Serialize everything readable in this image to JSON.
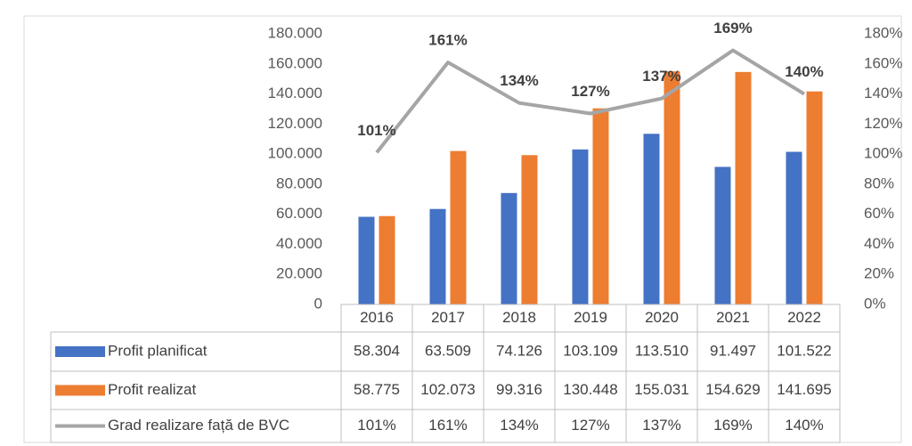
{
  "chart_data": {
    "type": "bar-line-table",
    "categories": [
      "2016",
      "2017",
      "2018",
      "2019",
      "2020",
      "2021",
      "2022"
    ],
    "series": [
      {
        "name": "Profit planificat",
        "color": "#4472c4",
        "axis": "y",
        "values": [
          58304,
          63509,
          74126,
          103109,
          113510,
          91497,
          101522
        ],
        "value_labels": [
          "58.304",
          "63.509",
          "74.126",
          "103.109",
          "113.510",
          "91.497",
          "101.522"
        ]
      },
      {
        "name": "Profit realizat",
        "color": "#ed7d31",
        "axis": "y",
        "values": [
          58775,
          102073,
          99316,
          130448,
          155031,
          154629,
          141695
        ],
        "value_labels": [
          "58.775",
          "102.073",
          "99.316",
          "130.448",
          "155.031",
          "154.629",
          "141.695"
        ]
      },
      {
        "name": "Grad realizare față de BVC",
        "color": "#a5a5a5",
        "axis": "y2",
        "values": [
          101,
          161,
          134,
          127,
          137,
          169,
          140
        ],
        "value_labels": [
          "101%",
          "161%",
          "134%",
          "127%",
          "137%",
          "169%",
          "140%"
        ]
      }
    ],
    "ylim": [
      0,
      180000
    ],
    "yticks": [
      0,
      {
        "value": 20000,
        "label": "20.000"
      },
      {
        "value": 40000,
        "label": "40.000"
      },
      {
        "value": 60000,
        "label": "60.000"
      },
      {
        "value": 80000,
        "label": "80.000"
      },
      {
        "value": 100000,
        "label": "100.000"
      },
      {
        "value": 120000,
        "label": "120.000"
      },
      {
        "value": 140000,
        "label": "140.000"
      },
      {
        "value": 160000,
        "label": "160.000"
      },
      {
        "value": 180000,
        "label": "180.000"
      }
    ],
    "y2lim": [
      0,
      180
    ],
    "y2ticks": [
      {
        "value": 0,
        "label": "0%"
      },
      {
        "value": 20,
        "label": "20%"
      },
      {
        "value": 40,
        "label": "40%"
      },
      {
        "value": 60,
        "label": "60%"
      },
      {
        "value": 80,
        "label": "80%"
      },
      {
        "value": 100,
        "label": "100%"
      },
      {
        "value": 120,
        "label": "120%"
      },
      {
        "value": 140,
        "label": "140%"
      },
      {
        "value": 160,
        "label": "160%"
      },
      {
        "value": 180,
        "label": "180%"
      }
    ],
    "grid": false
  }
}
